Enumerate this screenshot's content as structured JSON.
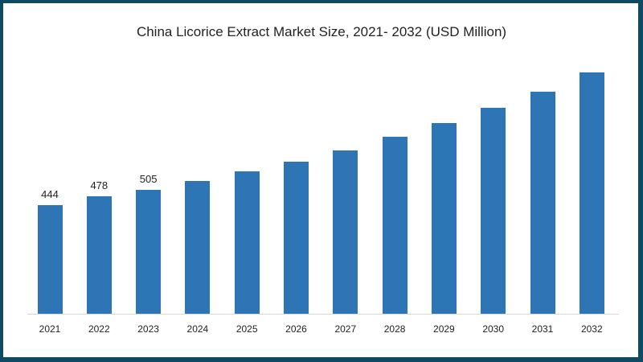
{
  "chart_data": {
    "type": "bar",
    "title": "China Licorice Extract Market Size, 2021- 2032 (USD Million)",
    "xlabel": "",
    "ylabel": "",
    "categories": [
      "2021",
      "2022",
      "2023",
      "2024",
      "2025",
      "2026",
      "2027",
      "2028",
      "2029",
      "2030",
      "2031",
      "2032"
    ],
    "values": [
      444,
      478,
      505,
      541,
      581,
      622,
      668,
      721,
      778,
      842,
      906,
      985
    ],
    "data_labels": [
      "444",
      "478",
      "505",
      "",
      "",
      "",
      "",
      "",
      "",
      "",
      "",
      ""
    ],
    "ylim": [
      0,
      1000
    ],
    "grid": false,
    "legend": null,
    "bar_color": "#2e75b6"
  },
  "frame": {
    "border_color": "#0e4a62",
    "background": "#ffffff"
  }
}
